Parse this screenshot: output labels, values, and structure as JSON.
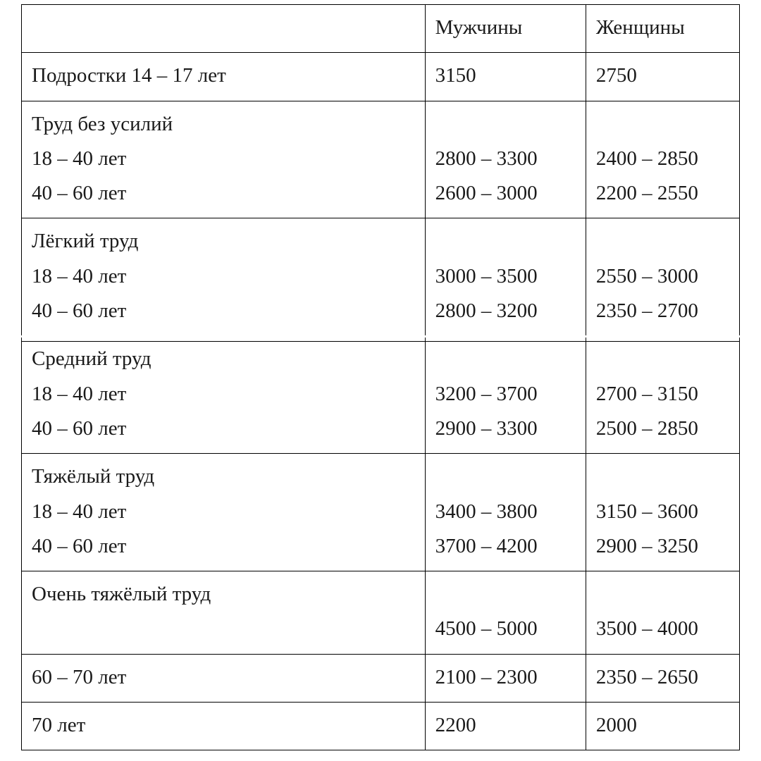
{
  "table": {
    "type": "table",
    "border_color": "#000000",
    "background_color": "#ffffff",
    "text_color": "#1a1a1a",
    "font_family": "Liberation Serif, Times New Roman, serif",
    "font_size_pt": 14,
    "column_widths_pct": [
      56.2,
      22.4,
      21.4
    ],
    "columns": [
      "",
      "Мужчины",
      "Женщины"
    ],
    "rows": [
      {
        "label": "Подростки 14 – 17 лет",
        "men": "3150",
        "women": "2750"
      },
      {
        "header": "Труд без усилий",
        "sub": [
          {
            "label": "18 – 40 лет",
            "men": "2800 – 3300",
            "women": "2400 – 2850"
          },
          {
            "label": "40 – 60 лет",
            "men": "2600 – 3000",
            "women": "2200 – 2550"
          }
        ]
      },
      {
        "header": "Лёгкий труд",
        "sub": [
          {
            "label": "18 – 40 лет",
            "men": "3000 – 3500",
            "women": "2550 – 3000"
          },
          {
            "label": "40 – 60 лет",
            "men": "2800 – 3200",
            "women": "2350 – 2700"
          }
        ]
      },
      {
        "header": "Средний труд",
        "sub": [
          {
            "label": "18 – 40 лет",
            "men": "3200 – 3700",
            "women": "2700 – 3150"
          },
          {
            "label": "40 – 60 лет",
            "men": "2900 – 3300",
            "women": "2500 – 2850"
          }
        ]
      },
      {
        "header": "Тяжёлый труд",
        "sub": [
          {
            "label": "18 – 40 лет",
            "men": "3400 – 3800",
            "women": "3150 – 3600"
          },
          {
            "label": "40 – 60 лет",
            "men": "3700 – 4200",
            "women": "2900 – 3250"
          }
        ]
      },
      {
        "header": "Очень тяжёлый труд",
        "sub": [
          {
            "label": "",
            "men": "4500 – 5000",
            "women": "3500 – 4000"
          }
        ]
      },
      {
        "label": "60 – 70 лет",
        "men": "2100 – 2300",
        "women": "2350 – 2650"
      },
      {
        "label": "70 лет",
        "men": "2200",
        "women": "2000"
      }
    ]
  }
}
